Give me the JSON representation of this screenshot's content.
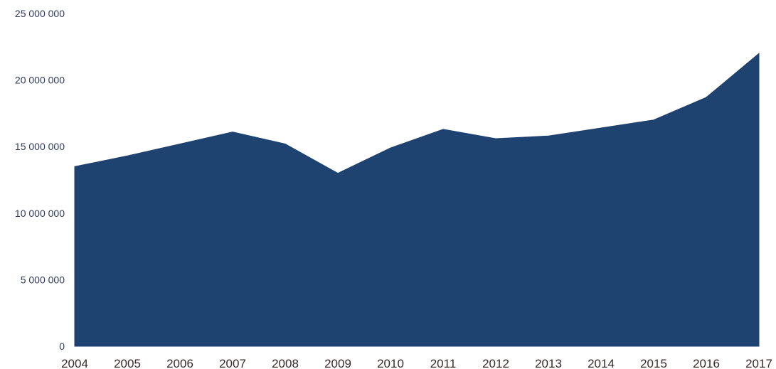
{
  "chart_data": {
    "type": "area",
    "title": "",
    "xlabel": "",
    "ylabel": "",
    "categories": [
      "2004",
      "2005",
      "2006",
      "2007",
      "2008",
      "2009",
      "2010",
      "2011",
      "2012",
      "2013",
      "2014",
      "2015",
      "2016",
      "2017"
    ],
    "series": [
      {
        "values": [
          13500000,
          14300000,
          15200000,
          16100000,
          15200000,
          13000000,
          14900000,
          16300000,
          15600000,
          15800000,
          16400000,
          17000000,
          18700000,
          22000000
        ],
        "color": "#1f4371"
      }
    ],
    "ylim": [
      0,
      25000000
    ],
    "yticks": [
      0,
      5000000,
      10000000,
      15000000,
      20000000,
      25000000
    ],
    "ytick_labels": [
      "0",
      "5 000 000",
      "10 000 000",
      "15 000 000",
      "20 000 000",
      "25 000 000"
    ],
    "grid": false,
    "legend": "none"
  }
}
